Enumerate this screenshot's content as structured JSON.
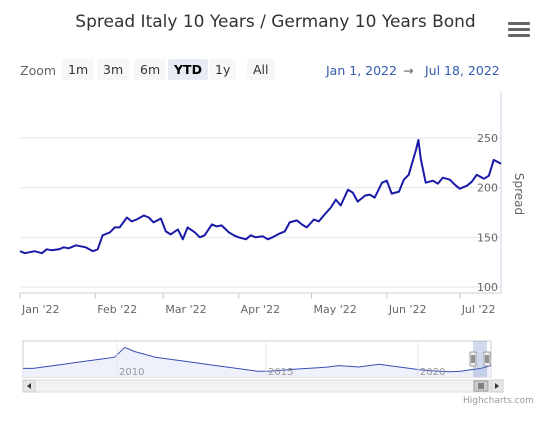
{
  "chart_title": "Spread Italy 10 Years / Germany 10 Years Bond",
  "zoom": {
    "label": "Zoom",
    "buttons": [
      "1m",
      "3m",
      "6m",
      "YTD",
      "1y",
      "All"
    ],
    "active": "YTD"
  },
  "range": {
    "from": "Jan 1, 2022",
    "separator": "→",
    "to": "Jul 18, 2022"
  },
  "credits": "Highcharts.com",
  "colors": {
    "series": "#1a1aa8",
    "navigator_line": "#3a4fb5",
    "navigator_fill": "#eef0fb",
    "accent": "#335cad"
  },
  "icons": {
    "menu": "hamburger-menu-icon"
  },
  "chart_data": {
    "type": "line",
    "title": "Spread Italy 10 Years / Germany 10 Years Bond",
    "xlabel": "",
    "ylabel": "Spread",
    "ylim": [
      100,
      250
    ],
    "y_ticks": [
      100,
      150,
      200,
      250
    ],
    "x_ticks": [
      "Jan '22",
      "Feb '22",
      "Mar '22",
      "Apr '22",
      "May '22",
      "Jun '22",
      "Jul '22"
    ],
    "grid": true,
    "legend": "none",
    "series": [
      {
        "x": [
          "2022-01-01",
          "2022-01-03",
          "2022-01-05",
          "2022-01-07",
          "2022-01-10",
          "2022-01-12",
          "2022-01-14",
          "2022-01-17",
          "2022-01-19",
          "2022-01-21",
          "2022-01-24",
          "2022-01-26",
          "2022-01-28",
          "2022-01-31",
          "2022-02-02",
          "2022-02-04",
          "2022-02-07",
          "2022-02-09",
          "2022-02-11",
          "2022-02-14",
          "2022-02-16",
          "2022-02-18",
          "2022-02-21",
          "2022-02-23",
          "2022-02-25",
          "2022-02-28",
          "2022-03-02",
          "2022-03-04",
          "2022-03-07",
          "2022-03-09",
          "2022-03-11",
          "2022-03-14",
          "2022-03-16",
          "2022-03-18",
          "2022-03-21",
          "2022-03-23",
          "2022-03-25",
          "2022-03-28",
          "2022-03-30",
          "2022-04-01",
          "2022-04-04",
          "2022-04-06",
          "2022-04-08",
          "2022-04-11",
          "2022-04-13",
          "2022-04-15",
          "2022-04-18",
          "2022-04-20",
          "2022-04-22",
          "2022-04-25",
          "2022-04-27",
          "2022-04-29",
          "2022-05-02",
          "2022-05-04",
          "2022-05-06",
          "2022-05-09",
          "2022-05-11",
          "2022-05-13",
          "2022-05-16",
          "2022-05-18",
          "2022-05-20",
          "2022-05-23",
          "2022-05-25",
          "2022-05-27",
          "2022-05-30",
          "2022-06-01",
          "2022-06-03",
          "2022-06-06",
          "2022-06-08",
          "2022-06-10",
          "2022-06-13",
          "2022-06-14",
          "2022-06-15",
          "2022-06-17",
          "2022-06-20",
          "2022-06-22",
          "2022-06-24",
          "2022-06-27",
          "2022-06-29",
          "2022-07-01",
          "2022-07-04",
          "2022-07-06",
          "2022-07-08",
          "2022-07-11",
          "2022-07-13",
          "2022-07-14",
          "2022-07-15",
          "2022-07-18"
        ],
        "values": [
          136,
          134,
          135,
          136,
          134,
          138,
          137,
          138,
          140,
          139,
          142,
          141,
          140,
          136,
          138,
          152,
          155,
          160,
          160,
          170,
          166,
          168,
          172,
          170,
          165,
          169,
          156,
          153,
          158,
          148,
          160,
          155,
          150,
          152,
          163,
          161,
          162,
          155,
          152,
          150,
          148,
          152,
          150,
          151,
          148,
          150,
          154,
          156,
          165,
          167,
          163,
          160,
          168,
          166,
          172,
          180,
          188,
          182,
          198,
          195,
          186,
          192,
          193,
          190,
          205,
          207,
          194,
          196,
          208,
          213,
          238,
          248,
          229,
          205,
          207,
          204,
          210,
          208,
          203,
          199,
          202,
          206,
          213,
          209,
          212,
          220,
          228,
          224
        ]
      }
    ],
    "navigator": {
      "x_ticks": [
        "2010",
        "2015",
        "2020"
      ],
      "selected_range": "YTD"
    }
  }
}
